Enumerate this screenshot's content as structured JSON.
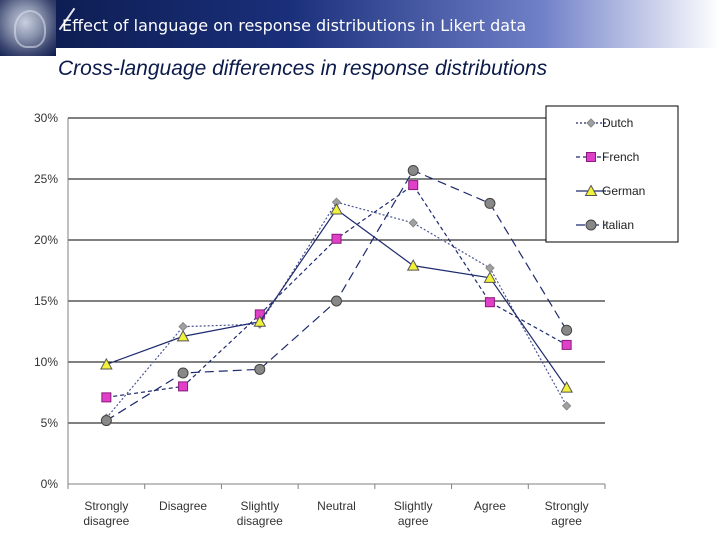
{
  "header": {
    "title": "Effect of language on response distributions in Likert data"
  },
  "slide": {
    "title": "Cross-language differences in response distributions"
  },
  "colors": {
    "header_dark": "#0b1a4a",
    "Dutch": "#a0a0a0",
    "French": "#e040c8",
    "German": "#f2f23a",
    "Italian": "#888888",
    "line_blue": "#1e2a6e"
  },
  "chart_data": {
    "type": "line",
    "title": "",
    "xlabel": "",
    "ylabel": "",
    "categories": [
      [
        "Strongly",
        "disagree"
      ],
      [
        "Disagree"
      ],
      [
        "Slightly",
        "disagree"
      ],
      [
        "Neutral"
      ],
      [
        "Slightly",
        "agree"
      ],
      [
        "Agree"
      ],
      [
        "Strongly",
        "agree"
      ]
    ],
    "y_ticks": [
      "0%",
      "5%",
      "10%",
      "15%",
      "20%",
      "25%",
      "30%"
    ],
    "ylim": [
      0,
      30
    ],
    "grid": "horizontal",
    "legend_position": "top-right",
    "series": [
      {
        "name": "Dutch",
        "marker": "diamond",
        "dash": "dotted",
        "values": [
          5.4,
          12.9,
          13.1,
          23.1,
          21.4,
          17.7,
          6.4
        ]
      },
      {
        "name": "French",
        "marker": "square",
        "dash": "short-dash",
        "values": [
          7.1,
          8.0,
          13.9,
          20.1,
          24.5,
          14.9,
          11.4
        ]
      },
      {
        "name": "German",
        "marker": "triangle",
        "dash": "solid",
        "values": [
          9.8,
          12.1,
          13.3,
          22.5,
          17.9,
          16.9,
          7.9
        ]
      },
      {
        "name": "Italian",
        "marker": "circle",
        "dash": "long-dash",
        "values": [
          5.2,
          9.1,
          9.4,
          15.0,
          25.7,
          23.0,
          12.6
        ]
      }
    ]
  }
}
